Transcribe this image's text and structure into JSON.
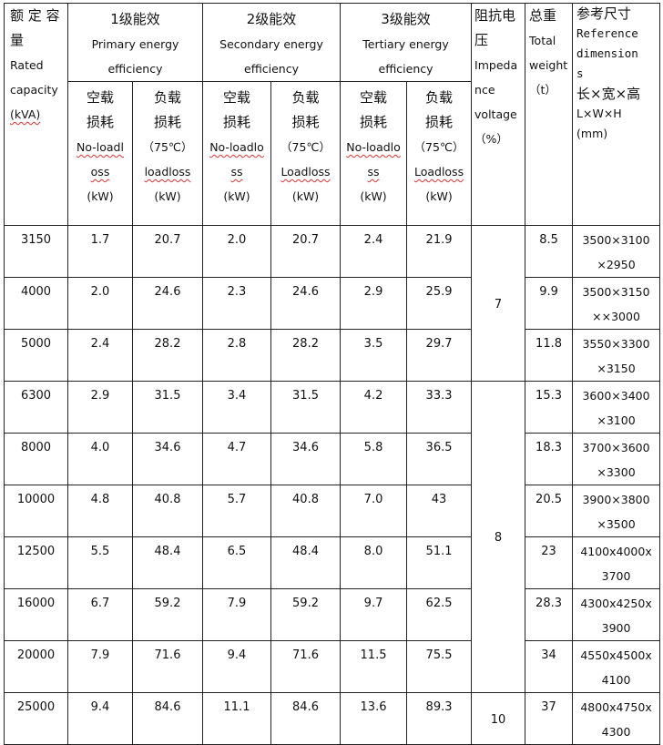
{
  "header": {
    "capacity": [
      "额 定 容",
      "量",
      "Rated",
      "capacity",
      "(kVA)"
    ],
    "groups": [
      {
        "cn": "1级能效",
        "en1": "Primary energy",
        "en2": "efficiency"
      },
      {
        "cn": "2级能效",
        "en1": "Secondary energy",
        "en2": "efficiency"
      },
      {
        "cn": "3级能效",
        "en1": "Tertiary energy",
        "en2": "efficiency"
      }
    ],
    "subs": [
      [
        "空载",
        "损耗",
        "No-loadl",
        "oss",
        "(kW)"
      ],
      [
        "负载",
        "损耗",
        "（75℃）",
        "loadloss",
        "(kW)"
      ],
      [
        "空载",
        "损耗",
        "No-loadlo",
        "ss",
        "(kW)"
      ],
      [
        "负载",
        "损耗",
        "（75℃）",
        "Loadloss",
        "(kW)"
      ],
      [
        "空载",
        "损耗",
        "No-loadlo",
        "ss",
        "(kW)"
      ],
      [
        "负载",
        "损耗",
        "（75℃）",
        "Loadloss",
        "(kW)"
      ]
    ],
    "impedance": [
      "阻抗电",
      "压",
      "Impeda",
      "nce",
      "voltage",
      "（%）"
    ],
    "weight": [
      "总重",
      "Total",
      "weight",
      "（t）"
    ],
    "dimensions": [
      "参考尺寸",
      "Reference",
      "dimension",
      "s",
      "长×宽×高",
      "L×W×H",
      "(mm)"
    ]
  },
  "rows": [
    {
      "cap": "3150",
      "v": [
        "1.7",
        "20.7",
        "2.0",
        "20.7",
        "2.4",
        "21.9"
      ],
      "wt": "8.5",
      "dim": [
        "3500×3100",
        "×2950"
      ]
    },
    {
      "cap": "4000",
      "v": [
        "2.0",
        "24.6",
        "2.3",
        "24.6",
        "2.9",
        "25.9"
      ],
      "wt": "9.9",
      "dim": [
        "3500×3150",
        "××3000"
      ]
    },
    {
      "cap": "5000",
      "v": [
        "2.4",
        "28.2",
        "2.8",
        "28.2",
        "3.5",
        "29.7"
      ],
      "wt": "11.8",
      "dim": [
        "3550×3300",
        "×3150"
      ]
    },
    {
      "cap": "6300",
      "v": [
        "2.9",
        "31.5",
        "3.4",
        "31.5",
        "4.2",
        "33.3"
      ],
      "wt": "15.3",
      "dim": [
        "3600×3400",
        "×3100"
      ]
    },
    {
      "cap": "8000",
      "v": [
        "4.0",
        "34.6",
        "4.7",
        "34.6",
        "5.8",
        "36.5"
      ],
      "wt": "18.3",
      "dim": [
        "3700×3600",
        "×3300"
      ]
    },
    {
      "cap": "10000",
      "v": [
        "4.8",
        "40.8",
        "5.7",
        "40.8",
        "7.0",
        "43"
      ],
      "wt": "20.5",
      "dim": [
        "3900×3800",
        "×3500"
      ]
    },
    {
      "cap": "12500",
      "v": [
        "5.5",
        "48.4",
        "6.5",
        "48.4",
        "8.0",
        "51.1"
      ],
      "wt": "23",
      "dim": [
        "4100x4000x",
        "3700"
      ]
    },
    {
      "cap": "16000",
      "v": [
        "6.7",
        "59.2",
        "7.9",
        "59.2",
        "9.7",
        "62.5"
      ],
      "wt": "28.3",
      "dim": [
        "4300x4250x",
        "3900"
      ]
    },
    {
      "cap": "20000",
      "v": [
        "7.9",
        "71.6",
        "9.4",
        "71.6",
        "11.5",
        "75.5"
      ],
      "wt": "34",
      "dim": [
        "4550x4500x",
        "4100"
      ]
    },
    {
      "cap": "25000",
      "v": [
        "9.4",
        "84.6",
        "11.1",
        "84.6",
        "13.6",
        "89.3"
      ],
      "wt": "37",
      "dim": [
        "4800x4750x",
        "4300"
      ]
    }
  ],
  "impedance_groups": [
    {
      "value": "7",
      "rows": 3
    },
    {
      "value": "8",
      "rows": 6
    },
    {
      "value": "10",
      "rows": 1
    }
  ]
}
